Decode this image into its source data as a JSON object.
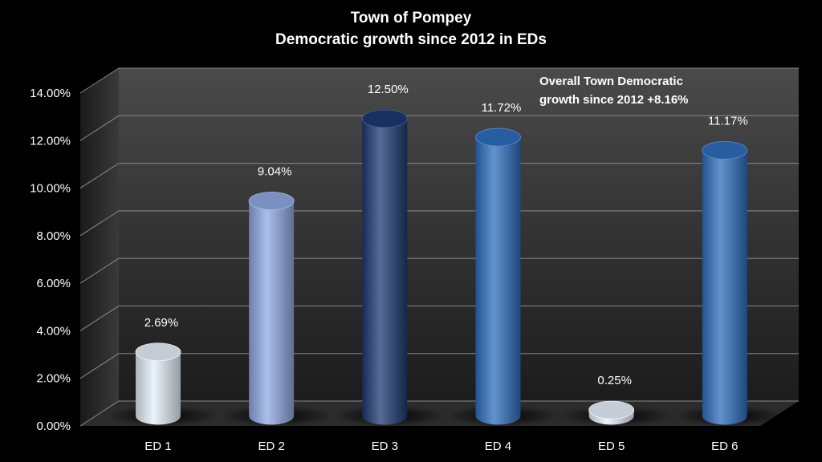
{
  "chart_data": {
    "type": "bar",
    "title_lines": [
      "Town of Pompey",
      "Democratic growth since 2012 in EDs"
    ],
    "categories": [
      "ED 1",
      "ED 2",
      "ED 3",
      "ED 4",
      "ED 5",
      "ED 6"
    ],
    "values": [
      2.69,
      9.04,
      12.5,
      11.72,
      0.25,
      11.17
    ],
    "data_labels": [
      "2.69%",
      "9.04%",
      "12.50%",
      "11.72%",
      "0.25%",
      "11.17%"
    ],
    "bar_colors": [
      "#e6f0fa",
      "#90a9e3",
      "#1d3a72",
      "#2e6fbf",
      "#e6f0fa",
      "#2e6fbf"
    ],
    "y_ticks": [
      "0.00%",
      "2.00%",
      "4.00%",
      "6.00%",
      "8.00%",
      "10.00%",
      "12.00%",
      "14.00%"
    ],
    "y_tick_values": [
      0,
      2,
      4,
      6,
      8,
      10,
      12,
      14
    ],
    "ylim": [
      0,
      14
    ],
    "grid": true,
    "bar_shape": "3d-cylinder",
    "annotation": [
      "Overall Town Democratic",
      "growth since 2012 +8.16%"
    ],
    "xlabel": "",
    "ylabel": ""
  }
}
